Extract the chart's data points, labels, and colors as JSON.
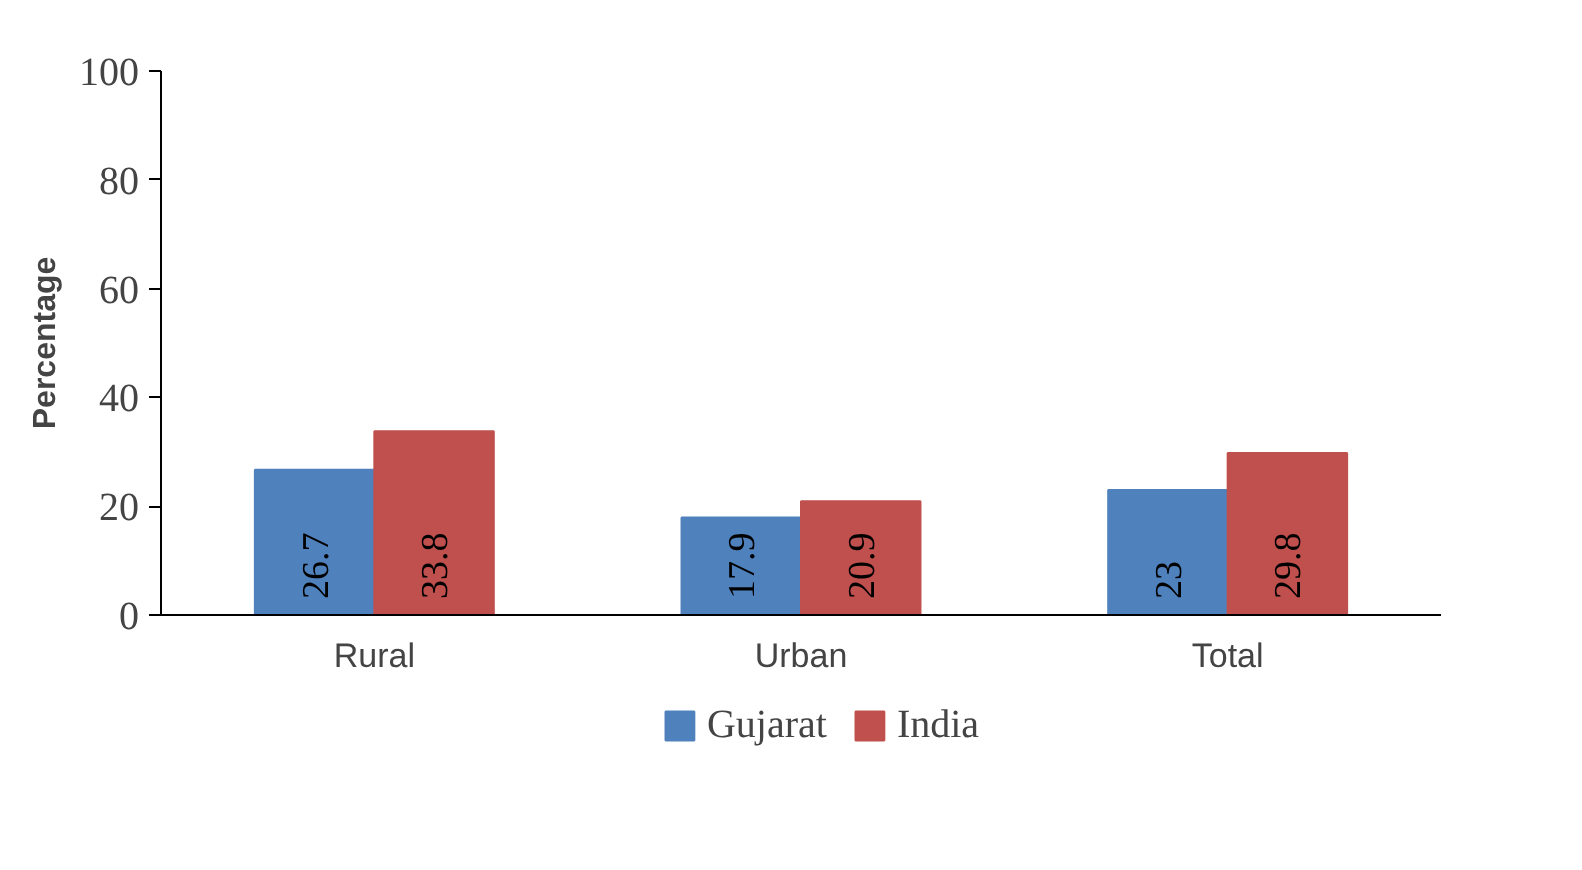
{
  "chart_data": {
    "type": "bar",
    "ylabel": "Percentage",
    "categories": [
      "Rural",
      "Urban",
      "Total"
    ],
    "series": [
      {
        "name": "Gujarat",
        "color": "#4f81bd",
        "values": [
          26.7,
          17.9,
          23
        ]
      },
      {
        "name": "India",
        "color": "#c0504d",
        "values": [
          33.8,
          20.9,
          29.8
        ]
      }
    ],
    "ylim": [
      0,
      100
    ],
    "yticks": [
      0,
      20,
      40,
      60,
      80,
      100
    ],
    "data_labels": true,
    "legend": "bottom",
    "grid": false
  }
}
